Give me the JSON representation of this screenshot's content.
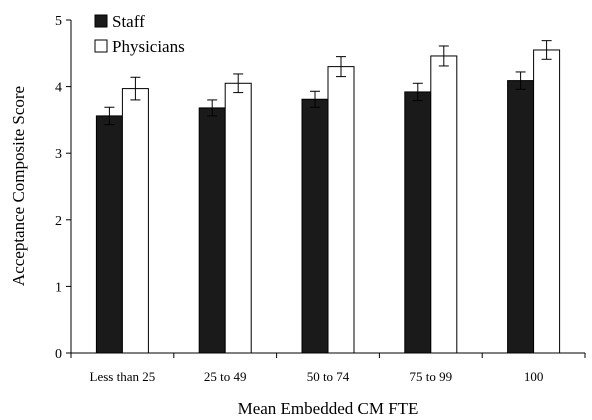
{
  "chart_data": {
    "type": "bar",
    "categories": [
      "Less than 25",
      "25 to 49",
      "50 to 74",
      "75 to 99",
      "100"
    ],
    "series": [
      {
        "name": "Staff",
        "color": "#1a1a1a",
        "values": [
          3.56,
          3.68,
          3.81,
          3.92,
          4.09
        ],
        "error": [
          0.13,
          0.12,
          0.12,
          0.13,
          0.13
        ]
      },
      {
        "name": "Physicians",
        "color": "#ffffff",
        "values": [
          3.97,
          4.05,
          4.3,
          4.46,
          4.55
        ],
        "error": [
          0.17,
          0.14,
          0.15,
          0.15,
          0.14
        ]
      }
    ],
    "xlabel": "Mean Embedded CM FTE",
    "ylabel": "Acceptance Composite Score",
    "ylim": [
      0,
      5
    ],
    "yticks": [
      "0",
      "1",
      "2",
      "3",
      "4",
      "5"
    ],
    "grid": false,
    "legend_position": "top-left",
    "error_bars": true
  }
}
